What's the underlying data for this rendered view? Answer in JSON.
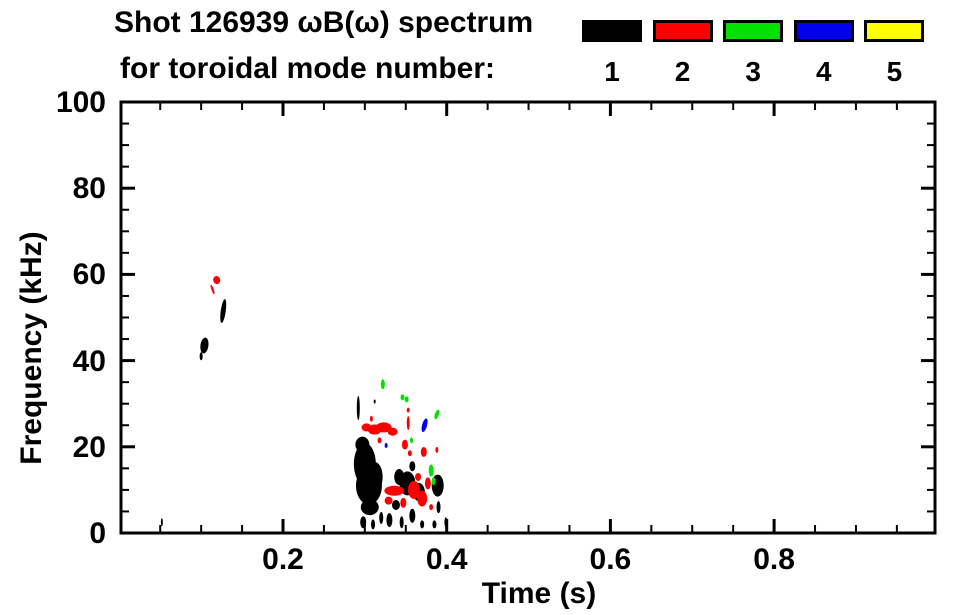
{
  "title": {
    "line1": "Shot 126939 ωB(ω) spectrum",
    "line2": "for toroidal mode number:"
  },
  "legend": {
    "entries": [
      {
        "label": "1",
        "color": "#000000",
        "name": "mode-1"
      },
      {
        "label": "2",
        "color": "#ff0000",
        "name": "mode-2"
      },
      {
        "label": "3",
        "color": "#00e100",
        "name": "mode-3"
      },
      {
        "label": "4",
        "color": "#0000ee",
        "name": "mode-4"
      },
      {
        "label": "5",
        "color": "#ffff00",
        "name": "mode-5"
      }
    ]
  },
  "chart_data": {
    "type": "scatter",
    "title": "Shot 126939 ωB(ω) spectrum for toroidal mode number",
    "xlabel": "Time (s)",
    "ylabel": "Frequency (kHz)",
    "xlim": [
      0.0,
      1.0
    ],
    "ylim": [
      0,
      100
    ],
    "grid": false,
    "legend_position": "top-right",
    "x_major_ticks": [
      0.2,
      0.4,
      0.6,
      0.8
    ],
    "x_tick_labels": [
      "0.2",
      "0.4",
      "0.6",
      "0.8"
    ],
    "x_minor_step": 0.05,
    "y_major_ticks": [
      0,
      20,
      40,
      60,
      80,
      100
    ],
    "y_tick_labels": [
      "0",
      "20",
      "40",
      "60",
      "80",
      "100"
    ],
    "y_minor_step": 5,
    "blob_format": [
      "time_s",
      "freq_kHz",
      "rx_px",
      "ry_px",
      "rot_deg"
    ],
    "series": [
      {
        "name": "toroidal mode n=1",
        "mode": 1,
        "color": "#000000",
        "blobs": [
          [
            0.052,
            2.5,
            1,
            4,
            0
          ],
          [
            0.104,
            43.5,
            4,
            8,
            8
          ],
          [
            0.1,
            41.0,
            1.5,
            4,
            0
          ],
          [
            0.127,
            51.5,
            2.5,
            12,
            8
          ],
          [
            0.292,
            29.0,
            1.5,
            12,
            0
          ],
          [
            0.312,
            30.5,
            1,
            2,
            0
          ],
          [
            0.3,
            16.0,
            11,
            21,
            0
          ],
          [
            0.305,
            11.0,
            13,
            19,
            0
          ],
          [
            0.297,
            20.5,
            7,
            8,
            0
          ],
          [
            0.312,
            13.0,
            8,
            15,
            0
          ],
          [
            0.306,
            6.0,
            9,
            8,
            0
          ],
          [
            0.298,
            2.5,
            3,
            6,
            0
          ],
          [
            0.31,
            2.0,
            2,
            5,
            0
          ],
          [
            0.32,
            3.5,
            2,
            6,
            0
          ],
          [
            0.33,
            3.0,
            3,
            7,
            0
          ],
          [
            0.345,
            2.5,
            2,
            6,
            0
          ],
          [
            0.338,
            6.5,
            4,
            5,
            0
          ],
          [
            0.352,
            11.5,
            8,
            12,
            0
          ],
          [
            0.342,
            13.0,
            5,
            8,
            0
          ],
          [
            0.366,
            9.5,
            6,
            9,
            0
          ],
          [
            0.358,
            15.5,
            3,
            5,
            0
          ],
          [
            0.358,
            4.0,
            3,
            7,
            0
          ],
          [
            0.37,
            2.0,
            2,
            4,
            0
          ],
          [
            0.385,
            2.0,
            2,
            4,
            0
          ],
          [
            0.389,
            11.0,
            6,
            11,
            0
          ],
          [
            0.39,
            6.0,
            2,
            6,
            0
          ],
          [
            0.399,
            2.5,
            1.5,
            5,
            0
          ]
        ]
      },
      {
        "name": "toroidal mode n=2",
        "mode": 2,
        "color": "#ff0000",
        "blobs": [
          [
            0.119,
            58.7,
            3.5,
            4,
            -15
          ],
          [
            0.114,
            56.5,
            1.2,
            5,
            -20
          ],
          [
            0.302,
            24.5,
            5,
            4,
            0
          ],
          [
            0.312,
            24.0,
            7,
            5,
            0
          ],
          [
            0.323,
            24.5,
            8,
            5,
            0
          ],
          [
            0.334,
            23.5,
            5,
            4,
            0
          ],
          [
            0.308,
            26.5,
            1.5,
            3,
            0
          ],
          [
            0.318,
            21.5,
            2,
            3,
            0
          ],
          [
            0.353,
            25.5,
            1.5,
            7,
            0
          ],
          [
            0.353,
            28.5,
            1.5,
            2.5,
            0
          ],
          [
            0.349,
            20.5,
            3,
            5,
            0
          ],
          [
            0.355,
            18.5,
            2,
            3,
            0
          ],
          [
            0.372,
            18.8,
            3,
            5,
            0
          ],
          [
            0.388,
            19.3,
            1.5,
            3,
            0
          ],
          [
            0.336,
            9.8,
            10,
            5,
            0
          ],
          [
            0.329,
            7.5,
            4,
            4,
            0
          ],
          [
            0.347,
            7.0,
            3,
            5,
            0
          ],
          [
            0.36,
            10.0,
            6,
            9,
            0
          ],
          [
            0.37,
            8.0,
            5,
            8,
            0
          ],
          [
            0.365,
            13.0,
            3,
            4,
            0
          ],
          [
            0.377,
            11.5,
            3,
            6,
            0
          ],
          [
            0.381,
            6.0,
            2,
            3,
            0
          ]
        ]
      },
      {
        "name": "toroidal mode n=3",
        "mode": 3,
        "color": "#00e100",
        "blobs": [
          [
            0.322,
            34.5,
            2,
            5,
            0
          ],
          [
            0.346,
            31.5,
            2,
            3,
            0
          ],
          [
            0.351,
            31.0,
            2,
            3,
            0
          ],
          [
            0.388,
            27.5,
            2,
            5,
            20
          ],
          [
            0.357,
            21.5,
            1.5,
            3,
            0
          ],
          [
            0.381,
            14.5,
            2.5,
            6,
            0
          ],
          [
            0.384,
            12.0,
            2,
            4,
            0
          ]
        ]
      },
      {
        "name": "toroidal mode n=4",
        "mode": 4,
        "color": "#0000ee",
        "blobs": [
          [
            0.373,
            25.0,
            2.5,
            7,
            15
          ],
          [
            0.326,
            20.3,
            1.5,
            2.5,
            0
          ]
        ]
      },
      {
        "name": "toroidal mode n=5",
        "mode": 5,
        "color": "#ffff00",
        "blobs": []
      }
    ]
  }
}
